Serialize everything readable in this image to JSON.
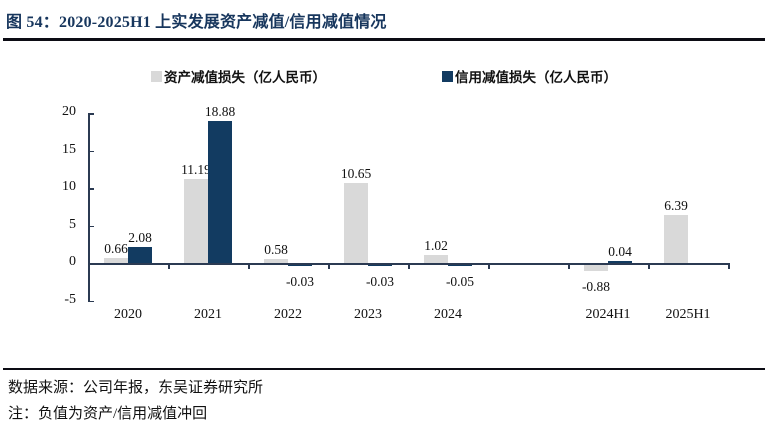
{
  "title": "图 54：2020-2025H1 上实发展资产减值/信用减值情况",
  "footer": {
    "source": "数据来源：公司年报，东吴证券研究所",
    "note": "注：负值为资产/信用减值冲回"
  },
  "colors": {
    "title_navy": "#17365D",
    "bar_navy": "#123B61",
    "bar_gray": "#D9D9D9",
    "axis": "#2B3A52",
    "rule_black": "#0C0C14"
  },
  "chart_data": {
    "type": "bar",
    "categories": [
      "2020",
      "2021",
      "2022",
      "2023",
      "2024",
      "",
      "2024H1",
      "2025H1"
    ],
    "series": [
      {
        "name": "资产减值损失（亿人民币）",
        "color": "#D9D9D9",
        "values": [
          0.66,
          11.19,
          0.58,
          10.65,
          1.02,
          null,
          -0.88,
          6.39
        ]
      },
      {
        "name": "信用减值损失（亿人民币）",
        "color": "#123B61",
        "values": [
          2.08,
          18.88,
          -0.03,
          -0.03,
          -0.05,
          null,
          0.04,
          null
        ]
      }
    ],
    "value_labels": [
      [
        "0.66",
        "11.19",
        "0.58",
        "10.65",
        "1.02",
        null,
        "-0.88",
        "6.39"
      ],
      [
        "2.08",
        "18.88",
        "-0.03",
        "-0.03",
        "-0.05",
        null,
        "0.04",
        null
      ]
    ],
    "title": "2020-2025H1 上实发展资产减值/信用减值情况",
    "xlabel": "",
    "ylabel": "",
    "ylim": [
      -5,
      20
    ],
    "yticks": [
      20,
      15,
      10,
      5,
      0,
      -5
    ],
    "grid": false,
    "legend_position": "top"
  }
}
